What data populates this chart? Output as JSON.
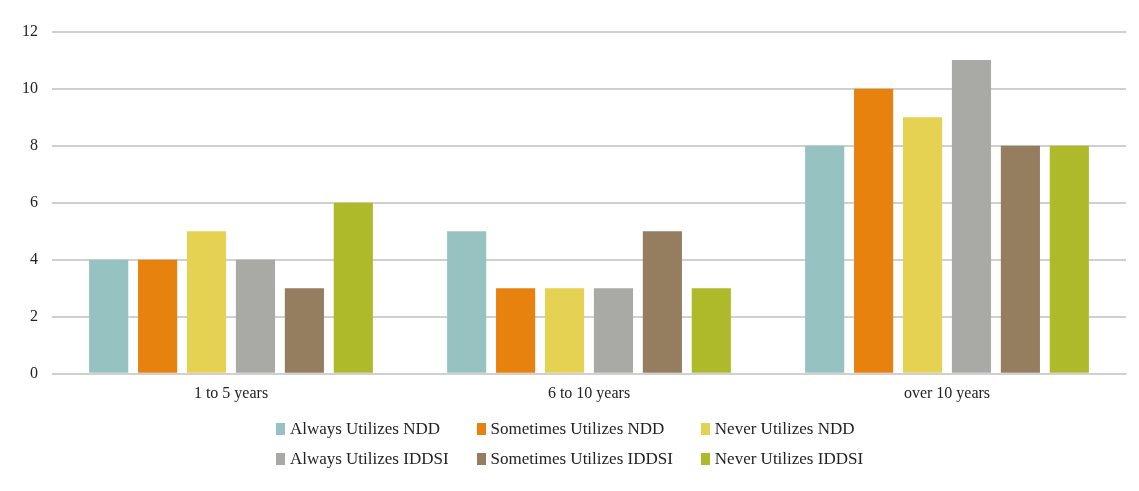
{
  "chart_data": {
    "type": "bar",
    "categories": [
      "1 to 5 years",
      "6 to 10 years",
      "over 10 years"
    ],
    "series": [
      {
        "name": "Always Utilizes NDD",
        "color": "#96c3c2",
        "values": [
          4,
          5,
          8
        ]
      },
      {
        "name": "Sometimes Utilizes NDD",
        "color": "#e8820f",
        "values": [
          4,
          3,
          10
        ]
      },
      {
        "name": "Never Utilizes NDD",
        "color": "#e5d152",
        "values": [
          5,
          3,
          9
        ]
      },
      {
        "name": "Always Utilizes IDDSI",
        "color": "#a9aaa5",
        "values": [
          4,
          3,
          11
        ]
      },
      {
        "name": "Sometimes Utilizes IDDSI",
        "color": "#957d5f",
        "values": [
          3,
          5,
          8
        ]
      },
      {
        "name": "Never Utilizes IDDSI",
        "color": "#aeba2a",
        "values": [
          6,
          3,
          8
        ]
      }
    ],
    "ylim": [
      0,
      12
    ],
    "yticks": [
      0,
      2,
      4,
      6,
      8,
      10,
      12
    ],
    "grid": "y",
    "legend": "bottom"
  }
}
